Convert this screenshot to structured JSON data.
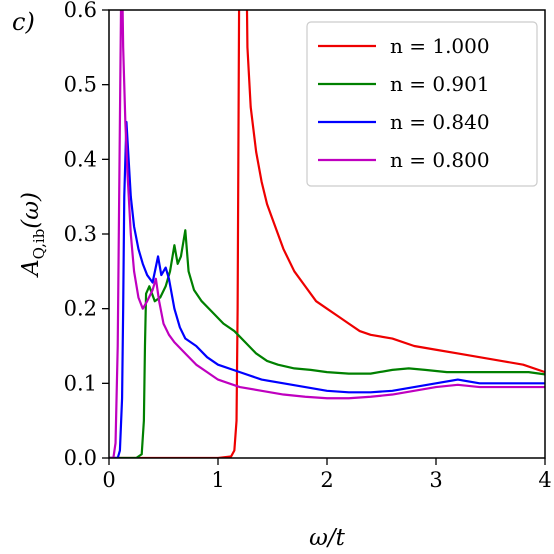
{
  "panel_label": "c)",
  "chart_data": {
    "type": "line",
    "xlabel": "ω/t",
    "ylabel": "A_{Q,ib}(ω)",
    "ylabel_main": "A",
    "ylabel_sub": "Q,ib",
    "ylabel_arg": "(ω)",
    "xlim": [
      0,
      4
    ],
    "ylim": [
      0,
      0.6
    ],
    "xticks": [
      0,
      1,
      2,
      3,
      4
    ],
    "xtick_labels": [
      "0",
      "1",
      "2",
      "3",
      "4"
    ],
    "yticks": [
      0,
      0.1,
      0.2,
      0.3,
      0.4,
      0.5,
      0.6
    ],
    "ytick_labels": [
      "0.0",
      "0.1",
      "0.2",
      "0.3",
      "0.4",
      "0.5",
      "0.6"
    ],
    "grid": false,
    "legend_position": "top-right",
    "series": [
      {
        "name": "n = 1.000",
        "color": "#ee0000",
        "points": [
          [
            0,
            0
          ],
          [
            1.0,
            0
          ],
          [
            1.12,
            0.002
          ],
          [
            1.15,
            0.01
          ],
          [
            1.17,
            0.05
          ],
          [
            1.18,
            0.2
          ],
          [
            1.19,
            0.5
          ],
          [
            1.2,
            0.8
          ],
          [
            1.25,
            0.8
          ],
          [
            1.27,
            0.55
          ],
          [
            1.3,
            0.47
          ],
          [
            1.35,
            0.41
          ],
          [
            1.4,
            0.37
          ],
          [
            1.45,
            0.34
          ],
          [
            1.5,
            0.32
          ],
          [
            1.55,
            0.3
          ],
          [
            1.6,
            0.28
          ],
          [
            1.7,
            0.25
          ],
          [
            1.8,
            0.23
          ],
          [
            1.9,
            0.21
          ],
          [
            2.0,
            0.2
          ],
          [
            2.1,
            0.19
          ],
          [
            2.2,
            0.18
          ],
          [
            2.3,
            0.17
          ],
          [
            2.4,
            0.165
          ],
          [
            2.6,
            0.16
          ],
          [
            2.8,
            0.15
          ],
          [
            3.0,
            0.145
          ],
          [
            3.2,
            0.14
          ],
          [
            3.4,
            0.135
          ],
          [
            3.6,
            0.13
          ],
          [
            3.8,
            0.125
          ],
          [
            4.0,
            0.115
          ]
        ]
      },
      {
        "name": "n = 0.901",
        "color": "#008000",
        "points": [
          [
            0,
            0
          ],
          [
            0.25,
            0
          ],
          [
            0.3,
            0.005
          ],
          [
            0.32,
            0.05
          ],
          [
            0.33,
            0.15
          ],
          [
            0.34,
            0.22
          ],
          [
            0.37,
            0.23
          ],
          [
            0.42,
            0.21
          ],
          [
            0.47,
            0.215
          ],
          [
            0.52,
            0.23
          ],
          [
            0.56,
            0.25
          ],
          [
            0.6,
            0.285
          ],
          [
            0.63,
            0.26
          ],
          [
            0.66,
            0.27
          ],
          [
            0.7,
            0.305
          ],
          [
            0.73,
            0.25
          ],
          [
            0.78,
            0.225
          ],
          [
            0.85,
            0.21
          ],
          [
            0.95,
            0.195
          ],
          [
            1.05,
            0.18
          ],
          [
            1.15,
            0.17
          ],
          [
            1.25,
            0.155
          ],
          [
            1.35,
            0.14
          ],
          [
            1.45,
            0.13
          ],
          [
            1.55,
            0.125
          ],
          [
            1.7,
            0.12
          ],
          [
            1.85,
            0.118
          ],
          [
            2.0,
            0.115
          ],
          [
            2.2,
            0.113
          ],
          [
            2.4,
            0.113
          ],
          [
            2.6,
            0.118
          ],
          [
            2.75,
            0.12
          ],
          [
            2.9,
            0.118
          ],
          [
            3.1,
            0.115
          ],
          [
            3.3,
            0.115
          ],
          [
            3.5,
            0.115
          ],
          [
            3.7,
            0.115
          ],
          [
            3.85,
            0.115
          ],
          [
            4.0,
            0.112
          ]
        ]
      },
      {
        "name": "n = 0.840",
        "color": "#0000ff",
        "points": [
          [
            0,
            0
          ],
          [
            0.08,
            0
          ],
          [
            0.1,
            0.01
          ],
          [
            0.12,
            0.08
          ],
          [
            0.13,
            0.2
          ],
          [
            0.14,
            0.35
          ],
          [
            0.16,
            0.45
          ],
          [
            0.18,
            0.4
          ],
          [
            0.2,
            0.35
          ],
          [
            0.23,
            0.31
          ],
          [
            0.27,
            0.28
          ],
          [
            0.31,
            0.26
          ],
          [
            0.35,
            0.245
          ],
          [
            0.4,
            0.235
          ],
          [
            0.45,
            0.27
          ],
          [
            0.48,
            0.245
          ],
          [
            0.52,
            0.255
          ],
          [
            0.55,
            0.24
          ],
          [
            0.6,
            0.2
          ],
          [
            0.65,
            0.175
          ],
          [
            0.7,
            0.16
          ],
          [
            0.8,
            0.15
          ],
          [
            0.9,
            0.135
          ],
          [
            1.0,
            0.125
          ],
          [
            1.2,
            0.115
          ],
          [
            1.4,
            0.105
          ],
          [
            1.6,
            0.1
          ],
          [
            1.8,
            0.095
          ],
          [
            2.0,
            0.09
          ],
          [
            2.2,
            0.088
          ],
          [
            2.4,
            0.088
          ],
          [
            2.6,
            0.09
          ],
          [
            2.8,
            0.095
          ],
          [
            3.0,
            0.1
          ],
          [
            3.2,
            0.105
          ],
          [
            3.4,
            0.1
          ],
          [
            3.6,
            0.1
          ],
          [
            3.8,
            0.1
          ],
          [
            4.0,
            0.1
          ]
        ]
      },
      {
        "name": "n = 0.800",
        "color": "#bf00bf",
        "points": [
          [
            0,
            0
          ],
          [
            0.04,
            0
          ],
          [
            0.06,
            0.02
          ],
          [
            0.08,
            0.15
          ],
          [
            0.1,
            0.45
          ],
          [
            0.11,
            0.6
          ],
          [
            0.12,
            0.65
          ],
          [
            0.13,
            0.55
          ],
          [
            0.15,
            0.45
          ],
          [
            0.17,
            0.38
          ],
          [
            0.2,
            0.3
          ],
          [
            0.23,
            0.25
          ],
          [
            0.27,
            0.215
          ],
          [
            0.31,
            0.2
          ],
          [
            0.35,
            0.21
          ],
          [
            0.4,
            0.225
          ],
          [
            0.43,
            0.24
          ],
          [
            0.46,
            0.21
          ],
          [
            0.5,
            0.18
          ],
          [
            0.55,
            0.165
          ],
          [
            0.6,
            0.155
          ],
          [
            0.7,
            0.14
          ],
          [
            0.8,
            0.125
          ],
          [
            0.9,
            0.115
          ],
          [
            1.0,
            0.105
          ],
          [
            1.2,
            0.095
          ],
          [
            1.4,
            0.09
          ],
          [
            1.6,
            0.085
          ],
          [
            1.8,
            0.082
          ],
          [
            2.0,
            0.08
          ],
          [
            2.2,
            0.08
          ],
          [
            2.4,
            0.082
          ],
          [
            2.6,
            0.085
          ],
          [
            2.8,
            0.09
          ],
          [
            3.0,
            0.095
          ],
          [
            3.2,
            0.098
          ],
          [
            3.4,
            0.095
          ],
          [
            3.6,
            0.095
          ],
          [
            3.8,
            0.095
          ],
          [
            4.0,
            0.095
          ]
        ]
      }
    ]
  }
}
